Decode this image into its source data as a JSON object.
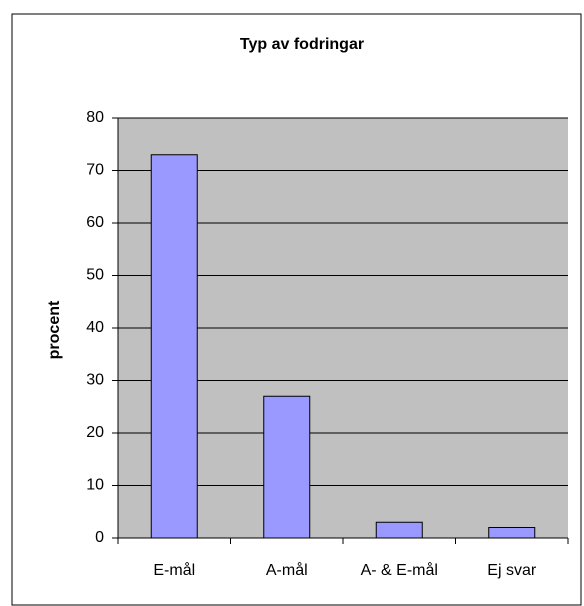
{
  "chart_data": {
    "type": "bar",
    "title": "Typ av fodringar",
    "ylabel": "procent",
    "categories": [
      "E-mål",
      "A-mål",
      "A- & E-mål",
      "Ej svar"
    ],
    "values": [
      73,
      27,
      3,
      2
    ],
    "color": "#9999ff",
    "ylim": [
      0,
      80
    ],
    "yticks": [
      0,
      10,
      20,
      30,
      40,
      50,
      60,
      70,
      80
    ],
    "grid": true
  }
}
